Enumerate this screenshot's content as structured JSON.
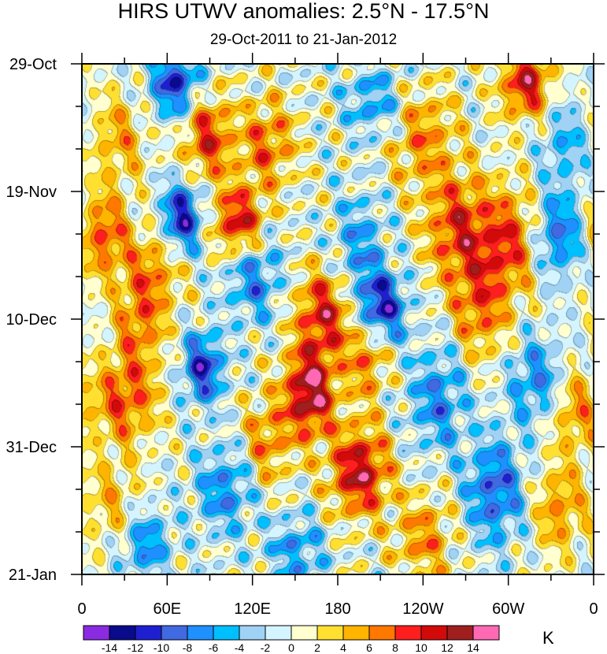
{
  "chart_data": {
    "type": "heatmap",
    "title": "HIRS UTWV anomalies: 2.5°N - 17.5°N",
    "subtitle": "29-Oct-2011 to 21-Jan-2012",
    "x_ticks": [
      "0",
      "60E",
      "120E",
      "180",
      "120W",
      "60W",
      "0"
    ],
    "y_ticks": [
      "29-Oct",
      "19-Nov",
      "10-Dec",
      "31-Dec",
      "21-Jan"
    ],
    "colorbar": {
      "levels": [
        "-14",
        "-12",
        "-10",
        "-8",
        "-6",
        "-4",
        "-2",
        "0",
        "2",
        "4",
        "6",
        "8",
        "10",
        "12",
        "14"
      ],
      "colors": [
        "#8a2be2",
        "#0a0a8c",
        "#1f1fd2",
        "#4169e1",
        "#1e90ff",
        "#00bfff",
        "#a0d2f5",
        "#d4f5ff",
        "#ffffd0",
        "#ffe030",
        "#ffb400",
        "#ff7800",
        "#ff1e1e",
        "#d20a0a",
        "#a01e1e",
        "#ff69b4"
      ],
      "units": "K"
    },
    "features": [
      {
        "lon": 65,
        "day": 3,
        "value": -11,
        "slon": 12,
        "sday": 4
      },
      {
        "lon": 205,
        "day": 6,
        "value": -6,
        "slon": 14,
        "sday": 4
      },
      {
        "lon": 312,
        "day": 3,
        "value": 11,
        "slon": 12,
        "sday": 4
      },
      {
        "lon": 25,
        "day": 12,
        "value": 5,
        "slon": 14,
        "sday": 5
      },
      {
        "lon": 88,
        "day": 12,
        "value": 9,
        "slon": 12,
        "sday": 5
      },
      {
        "lon": 130,
        "day": 13,
        "value": 7,
        "slon": 14,
        "sday": 5
      },
      {
        "lon": 240,
        "day": 12,
        "value": 6,
        "slon": 16,
        "sday": 6
      },
      {
        "lon": 340,
        "day": 13,
        "value": -5,
        "slon": 12,
        "sday": 5
      },
      {
        "lon": 70,
        "day": 25,
        "value": -12,
        "slon": 10,
        "sday": 4
      },
      {
        "lon": 110,
        "day": 26,
        "value": 11,
        "slon": 12,
        "sday": 4
      },
      {
        "lon": 15,
        "day": 28,
        "value": 8,
        "slon": 12,
        "sday": 5
      },
      {
        "lon": 50,
        "day": 34,
        "value": 6,
        "slon": 14,
        "sday": 5
      },
      {
        "lon": 195,
        "day": 30,
        "value": -6,
        "slon": 12,
        "sday": 6
      },
      {
        "lon": 265,
        "day": 27,
        "value": 9,
        "slon": 16,
        "sday": 6
      },
      {
        "lon": 300,
        "day": 29,
        "value": 8,
        "slon": 14,
        "sday": 6
      },
      {
        "lon": 335,
        "day": 28,
        "value": -8,
        "slon": 12,
        "sday": 5
      },
      {
        "lon": 120,
        "day": 35,
        "value": -7,
        "slon": 14,
        "sday": 5
      },
      {
        "lon": 210,
        "day": 40,
        "value": -12,
        "slon": 12,
        "sday": 4
      },
      {
        "lon": 170,
        "day": 41,
        "value": 10,
        "slon": 14,
        "sday": 5
      },
      {
        "lon": 280,
        "day": 40,
        "value": 7,
        "slon": 14,
        "sday": 6
      },
      {
        "lon": 40,
        "day": 43,
        "value": 6,
        "slon": 12,
        "sday": 5
      },
      {
        "lon": 85,
        "day": 50,
        "value": -11,
        "slon": 10,
        "sday": 4
      },
      {
        "lon": 160,
        "day": 54,
        "value": 14,
        "slon": 12,
        "sday": 5
      },
      {
        "lon": 200,
        "day": 48,
        "value": 7,
        "slon": 10,
        "sday": 5
      },
      {
        "lon": 30,
        "day": 55,
        "value": 8,
        "slon": 16,
        "sday": 5
      },
      {
        "lon": 250,
        "day": 55,
        "value": -7,
        "slon": 14,
        "sday": 6
      },
      {
        "lon": 320,
        "day": 52,
        "value": -7,
        "slon": 14,
        "sday": 5
      },
      {
        "lon": 345,
        "day": 57,
        "value": 6,
        "slon": 12,
        "sday": 5
      },
      {
        "lon": 130,
        "day": 62,
        "value": 6,
        "slon": 12,
        "sday": 5
      },
      {
        "lon": 195,
        "day": 67,
        "value": 12,
        "slon": 14,
        "sday": 5
      },
      {
        "lon": 100,
        "day": 70,
        "value": -7,
        "slon": 14,
        "sday": 5
      },
      {
        "lon": 290,
        "day": 70,
        "value": -9,
        "slon": 14,
        "sday": 6
      },
      {
        "lon": 20,
        "day": 72,
        "value": 4,
        "slon": 14,
        "sday": 5
      },
      {
        "lon": 240,
        "day": 78,
        "value": 6,
        "slon": 14,
        "sday": 5
      },
      {
        "lon": 335,
        "day": 73,
        "value": 6,
        "slon": 12,
        "sday": 5
      },
      {
        "lon": 150,
        "day": 80,
        "value": -6,
        "slon": 14,
        "sday": 4
      },
      {
        "lon": 45,
        "day": 79,
        "value": -7,
        "slon": 12,
        "sday": 4
      }
    ]
  }
}
